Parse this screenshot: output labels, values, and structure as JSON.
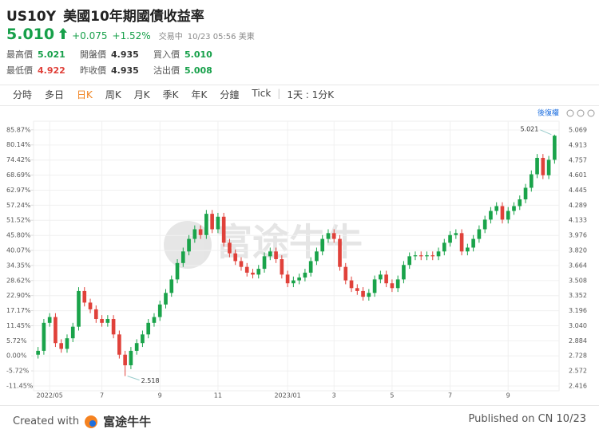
{
  "header": {
    "symbol": "US10Y",
    "name": "美國10年期國債收益率",
    "price": "5.010",
    "change": "+0.075",
    "change_pct": "+1.52%",
    "status": "交易中",
    "time": "10/23 05:56 美東"
  },
  "stats": [
    {
      "label": "最高價",
      "value": "5.021",
      "color": "#17a04a"
    },
    {
      "label": "最低價",
      "value": "4.922",
      "color": "#e0413a"
    },
    {
      "label": "開盤價",
      "value": "4.935",
      "color": "#333"
    },
    {
      "label": "昨收價",
      "value": "4.935",
      "color": "#333"
    },
    {
      "label": "買入價",
      "value": "5.010",
      "color": "#17a04a"
    },
    {
      "label": "沽出價",
      "value": "5.008",
      "color": "#17a04a"
    }
  ],
  "tabs": [
    "分時",
    "多日",
    "日K",
    "周K",
    "月K",
    "季K",
    "年K",
    "分鐘",
    "Tick"
  ],
  "active_tab": 2,
  "range_label": "1天 : 1分K",
  "adjust": "後復權",
  "watermark": "富途牛牛",
  "footer": {
    "created": "Created with",
    "brand": "富途牛牛",
    "published": "Published on CN 10/23"
  },
  "chart_data": {
    "type": "candlestick",
    "categories": [
      null,
      null,
      "2022/05",
      null,
      null,
      null,
      null,
      null,
      null,
      null,
      null,
      "7",
      null,
      null,
      null,
      null,
      null,
      null,
      null,
      null,
      null,
      "9",
      null,
      null,
      null,
      null,
      null,
      null,
      null,
      null,
      null,
      "11",
      null,
      null,
      null,
      null,
      null,
      null,
      null,
      null,
      null,
      null,
      null,
      "2023/01",
      null,
      null,
      null,
      null,
      null,
      null,
      null,
      "3",
      null,
      null,
      null,
      null,
      null,
      null,
      null,
      null,
      null,
      "5",
      null,
      null,
      null,
      null,
      null,
      null,
      null,
      null,
      null,
      "7",
      null,
      null,
      null,
      null,
      null,
      null,
      null,
      null,
      null,
      "9",
      null,
      null,
      null,
      null,
      null,
      null,
      null,
      null
    ],
    "open": [
      2.74,
      2.78,
      3.07,
      3.13,
      2.86,
      2.8,
      2.91,
      3.03,
      3.4,
      3.28,
      3.21,
      3.11,
      3.07,
      3.11,
      2.95,
      2.74,
      2.63,
      2.78,
      2.86,
      2.95,
      3.07,
      3.13,
      3.26,
      3.38,
      3.52,
      3.69,
      3.81,
      3.94,
      4.04,
      3.98,
      4.2,
      4.04,
      4.17,
      3.9,
      3.79,
      3.71,
      3.65,
      3.59,
      3.57,
      3.63,
      3.76,
      3.81,
      3.73,
      3.57,
      3.48,
      3.51,
      3.54,
      3.59,
      3.71,
      3.81,
      3.94,
      4.0,
      3.94,
      3.65,
      3.51,
      3.43,
      3.4,
      3.34,
      3.38,
      3.52,
      3.57,
      3.48,
      3.43,
      3.52,
      3.67,
      3.76,
      3.77,
      3.76,
      3.77,
      3.76,
      3.81,
      3.9,
      3.98,
      4.0,
      3.81,
      3.85,
      3.94,
      4.04,
      4.14,
      4.23,
      4.28,
      4.14,
      4.23,
      4.28,
      4.35,
      4.47,
      4.61,
      4.78,
      4.6,
      4.76
    ],
    "high": [
      2.82,
      3.11,
      3.17,
      3.17,
      2.9,
      2.95,
      3.07,
      3.44,
      3.44,
      3.32,
      3.25,
      3.15,
      3.15,
      3.15,
      2.99,
      2.78,
      2.82,
      2.9,
      2.99,
      3.11,
      3.17,
      3.3,
      3.42,
      3.56,
      3.73,
      3.85,
      3.98,
      4.08,
      4.08,
      4.24,
      4.24,
      4.21,
      4.21,
      3.94,
      3.83,
      3.75,
      3.69,
      3.63,
      3.67,
      3.8,
      3.85,
      3.85,
      3.77,
      3.61,
      3.55,
      3.58,
      3.63,
      3.75,
      3.85,
      3.98,
      4.04,
      4.04,
      3.98,
      3.69,
      3.55,
      3.47,
      3.44,
      3.42,
      3.56,
      3.61,
      3.61,
      3.52,
      3.56,
      3.71,
      3.8,
      3.81,
      3.81,
      3.81,
      3.81,
      3.85,
      3.94,
      4.02,
      4.04,
      4.04,
      3.89,
      3.98,
      4.08,
      4.18,
      4.27,
      4.32,
      4.32,
      4.27,
      4.32,
      4.39,
      4.51,
      4.65,
      4.82,
      4.82,
      4.8,
      5.021
    ],
    "low": [
      2.7,
      2.74,
      3.03,
      2.82,
      2.76,
      2.76,
      2.87,
      2.99,
      3.24,
      3.17,
      3.07,
      3.03,
      3.03,
      2.91,
      2.7,
      2.518,
      2.59,
      2.74,
      2.82,
      2.91,
      3.03,
      3.09,
      3.22,
      3.34,
      3.48,
      3.65,
      3.77,
      3.9,
      3.94,
      3.94,
      4.0,
      4.0,
      3.86,
      3.75,
      3.67,
      3.61,
      3.55,
      3.53,
      3.53,
      3.59,
      3.72,
      3.69,
      3.53,
      3.44,
      3.44,
      3.47,
      3.5,
      3.55,
      3.67,
      3.77,
      3.9,
      3.9,
      3.61,
      3.47,
      3.39,
      3.36,
      3.3,
      3.3,
      3.34,
      3.48,
      3.44,
      3.39,
      3.39,
      3.48,
      3.63,
      3.72,
      3.72,
      3.72,
      3.72,
      3.72,
      3.77,
      3.86,
      3.94,
      3.77,
      3.77,
      3.81,
      3.9,
      4.0,
      4.1,
      4.19,
      4.1,
      4.1,
      4.19,
      4.24,
      4.31,
      4.43,
      4.57,
      4.56,
      4.56,
      4.72
    ],
    "close": [
      2.78,
      3.07,
      3.13,
      2.86,
      2.8,
      2.91,
      3.03,
      3.4,
      3.28,
      3.21,
      3.11,
      3.07,
      3.11,
      2.95,
      2.74,
      2.63,
      2.78,
      2.86,
      2.95,
      3.07,
      3.13,
      3.26,
      3.38,
      3.52,
      3.69,
      3.81,
      3.94,
      4.04,
      3.98,
      4.2,
      4.04,
      4.17,
      3.9,
      3.79,
      3.71,
      3.65,
      3.59,
      3.57,
      3.63,
      3.76,
      3.81,
      3.73,
      3.57,
      3.48,
      3.51,
      3.54,
      3.59,
      3.71,
      3.81,
      3.94,
      4.0,
      3.94,
      3.65,
      3.51,
      3.43,
      3.4,
      3.34,
      3.38,
      3.52,
      3.57,
      3.48,
      3.43,
      3.52,
      3.67,
      3.76,
      3.77,
      3.76,
      3.77,
      3.76,
      3.81,
      3.9,
      3.98,
      4.0,
      3.81,
      3.85,
      3.94,
      4.04,
      4.14,
      4.23,
      4.28,
      4.14,
      4.23,
      4.28,
      4.35,
      4.47,
      4.61,
      4.78,
      4.6,
      4.76,
      5.01
    ],
    "up_color": "#1aa34a",
    "down_color": "#e0413a",
    "grid": true,
    "ylim": [
      2.366,
      5.16
    ],
    "yticks": [
      5.069,
      4.913,
      4.757,
      4.601,
      4.445,
      4.289,
      4.133,
      3.976,
      {
        "value": 3.82,
        "label": "3.820"
      },
      3.664,
      3.508,
      3.352,
      3.196,
      {
        "value": 3.04,
        "label": "3.040"
      },
      2.884,
      2.728,
      2.572,
      2.416
    ],
    "y2lim": [
      -13.27,
      89.15
    ],
    "y2ticks": [
      {
        "value": 85.87,
        "label": "85.87%"
      },
      {
        "value": 80.14,
        "label": "80.14%"
      },
      {
        "value": 74.42,
        "label": "74.42%"
      },
      {
        "value": 68.69,
        "label": "68.69%"
      },
      {
        "value": 62.97,
        "label": "62.97%"
      },
      {
        "value": 57.24,
        "label": "57.24%"
      },
      {
        "value": 51.52,
        "label": "51.52%"
      },
      {
        "value": 45.8,
        "label": "45.80%"
      },
      {
        "value": 40.07,
        "label": "40.07%"
      },
      {
        "value": 34.35,
        "label": "34.35%"
      },
      {
        "value": 28.62,
        "label": "28.62%"
      },
      {
        "value": 22.9,
        "label": "22.90%"
      },
      {
        "value": 17.17,
        "label": "17.17%"
      },
      {
        "value": 11.45,
        "label": "11.45%"
      },
      {
        "value": 5.72,
        "label": "5.72%"
      },
      {
        "value": 0.0,
        "label": "0.00%"
      },
      {
        "value": -5.72,
        "label": "-5.72%"
      },
      {
        "value": -11.45,
        "label": "-11.45%"
      }
    ]
  }
}
